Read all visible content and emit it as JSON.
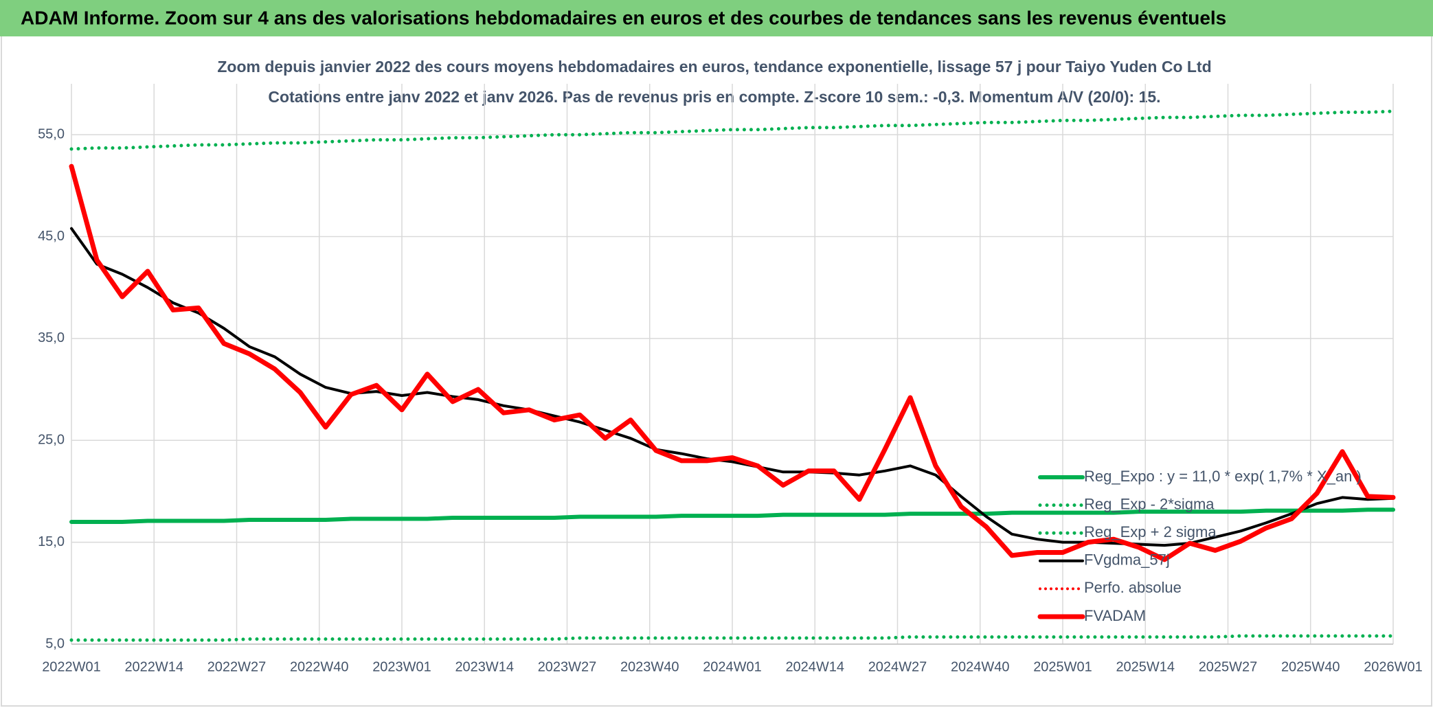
{
  "header": {
    "title": "ADAM Informe. Zoom sur 4 ans des valorisations hebdomadaires en euros et des courbes de tendances sans les revenus éventuels"
  },
  "chart_data": {
    "type": "line",
    "title": "Zoom depuis janvier 2022 des cours moyens hebdomadaires en euros, tendance exponentielle, lissage 57 j pour Taiyo Yuden Co Ltd",
    "subtitle": "Cotations entre janv 2022 et janv 2026. Pas de revenus pris en compte. Z-score 10 sem.: -0,3. Momentum A/V (20/0): 15.",
    "x": [
      0,
      4,
      8,
      12,
      16,
      20,
      24,
      28,
      32,
      36,
      40,
      44,
      48,
      52,
      56,
      60,
      64,
      68,
      72,
      76,
      80,
      84,
      88,
      92,
      96,
      100,
      104,
      108,
      112,
      116,
      120,
      124,
      128,
      132,
      136,
      140,
      144,
      148,
      152,
      156,
      160,
      164,
      168,
      172,
      176,
      180,
      184,
      188,
      192,
      196,
      200,
      204,
      208
    ],
    "xlim": [
      0,
      208
    ],
    "xticks": [
      {
        "value": 0,
        "label": "2022W01"
      },
      {
        "value": 13,
        "label": "2022W14"
      },
      {
        "value": 26,
        "label": "2022W27"
      },
      {
        "value": 39,
        "label": "2022W40"
      },
      {
        "value": 52,
        "label": "2023W01"
      },
      {
        "value": 65,
        "label": "2023W14"
      },
      {
        "value": 78,
        "label": "2023W27"
      },
      {
        "value": 91,
        "label": "2023W40"
      },
      {
        "value": 104,
        "label": "2024W01"
      },
      {
        "value": 117,
        "label": "2024W14"
      },
      {
        "value": 130,
        "label": "2024W27"
      },
      {
        "value": 143,
        "label": "2024W40"
      },
      {
        "value": 156,
        "label": "2025W01"
      },
      {
        "value": 169,
        "label": "2025W14"
      },
      {
        "value": 182,
        "label": "2025W27"
      },
      {
        "value": 195,
        "label": "2025W40"
      },
      {
        "value": 208,
        "label": "2026W01"
      }
    ],
    "ylim": [
      5,
      60
    ],
    "yticks": [
      {
        "value": 5,
        "label": "5,0"
      },
      {
        "value": 15,
        "label": "15,0"
      },
      {
        "value": 25,
        "label": "25,0"
      },
      {
        "value": 35,
        "label": "35,0"
      },
      {
        "value": 45,
        "label": "45,0"
      },
      {
        "value": 55,
        "label": "55,0"
      }
    ],
    "grid": true,
    "legend": "lower right",
    "series": [
      {
        "name": "Reg_Expo : y = 11,0 * exp( 1,7% * X_an )",
        "color": "#00b050",
        "style": "solid",
        "width": 6,
        "values": [
          17.0,
          17.0,
          17.0,
          17.1,
          17.1,
          17.1,
          17.1,
          17.2,
          17.2,
          17.2,
          17.2,
          17.3,
          17.3,
          17.3,
          17.3,
          17.4,
          17.4,
          17.4,
          17.4,
          17.4,
          17.5,
          17.5,
          17.5,
          17.5,
          17.6,
          17.6,
          17.6,
          17.6,
          17.7,
          17.7,
          17.7,
          17.7,
          17.7,
          17.8,
          17.8,
          17.8,
          17.8,
          17.9,
          17.9,
          17.9,
          17.9,
          17.9,
          18.0,
          18.0,
          18.0,
          18.0,
          18.0,
          18.1,
          18.1,
          18.1,
          18.1,
          18.2,
          18.2
        ]
      },
      {
        "name": "Reg_Exp - 2*sigma",
        "color": "#00b050",
        "style": "dotted",
        "width": 5,
        "values": [
          5.4,
          5.4,
          5.4,
          5.4,
          5.4,
          5.4,
          5.4,
          5.5,
          5.5,
          5.5,
          5.5,
          5.5,
          5.5,
          5.5,
          5.5,
          5.5,
          5.5,
          5.5,
          5.5,
          5.5,
          5.6,
          5.6,
          5.6,
          5.6,
          5.6,
          5.6,
          5.6,
          5.6,
          5.6,
          5.6,
          5.6,
          5.6,
          5.6,
          5.7,
          5.7,
          5.7,
          5.7,
          5.7,
          5.7,
          5.7,
          5.7,
          5.7,
          5.7,
          5.7,
          5.7,
          5.7,
          5.8,
          5.8,
          5.8,
          5.8,
          5.8,
          5.8,
          5.8
        ]
      },
      {
        "name": "Reg_Exp + 2 sigma",
        "color": "#00b050",
        "style": "dotted",
        "width": 5,
        "values": [
          53.6,
          53.7,
          53.7,
          53.8,
          53.9,
          54.0,
          54.0,
          54.1,
          54.2,
          54.2,
          54.3,
          54.4,
          54.5,
          54.5,
          54.6,
          54.7,
          54.7,
          54.8,
          54.9,
          55.0,
          55.0,
          55.1,
          55.2,
          55.2,
          55.3,
          55.4,
          55.5,
          55.5,
          55.6,
          55.7,
          55.7,
          55.8,
          55.9,
          55.9,
          56.0,
          56.1,
          56.2,
          56.2,
          56.3,
          56.4,
          56.4,
          56.5,
          56.6,
          56.7,
          56.7,
          56.8,
          56.9,
          56.9,
          57.0,
          57.1,
          57.2,
          57.2,
          57.3
        ]
      },
      {
        "name": "FVgdma_57j",
        "color": "#000000",
        "style": "solid",
        "width": 4,
        "values": [
          45.8,
          42.3,
          41.3,
          40.0,
          38.5,
          37.5,
          36.0,
          34.2,
          33.2,
          31.5,
          30.2,
          29.6,
          29.8,
          29.4,
          29.7,
          29.3,
          29.0,
          28.4,
          28.0,
          27.4,
          26.8,
          26.0,
          25.2,
          24.1,
          23.7,
          23.2,
          22.9,
          22.4,
          21.9,
          21.9,
          21.8,
          21.6,
          22.0,
          22.5,
          21.6,
          19.5,
          17.5,
          15.8,
          15.3,
          15.0,
          15.0,
          14.9,
          14.8,
          14.7,
          14.9,
          15.5,
          16.1,
          16.9,
          17.8,
          18.8,
          19.4,
          19.2,
          19.3
        ]
      },
      {
        "name": "Perfo. absolue",
        "color": "#ff0000",
        "style": "dotted",
        "width": 4
      },
      {
        "name": "FVADAM",
        "color": "#ff0000",
        "style": "solid",
        "width": 7,
        "values": [
          51.9,
          42.7,
          39.1,
          41.6,
          37.8,
          38.0,
          34.5,
          33.5,
          32.0,
          29.7,
          26.3,
          29.5,
          30.4,
          28.0,
          31.5,
          28.8,
          30.0,
          27.7,
          28.0,
          27.0,
          27.5,
          25.2,
          27.0,
          24.0,
          23.0,
          23.0,
          23.3,
          22.5,
          20.6,
          22.0,
          22.0,
          19.2,
          24.1,
          29.2,
          22.5,
          18.5,
          16.5,
          13.7,
          14.0,
          14.0,
          15.0,
          15.3,
          14.5,
          13.3,
          14.9,
          14.2,
          15.1,
          16.4,
          17.3,
          19.8,
          23.9,
          19.5,
          19.4
        ]
      }
    ]
  }
}
